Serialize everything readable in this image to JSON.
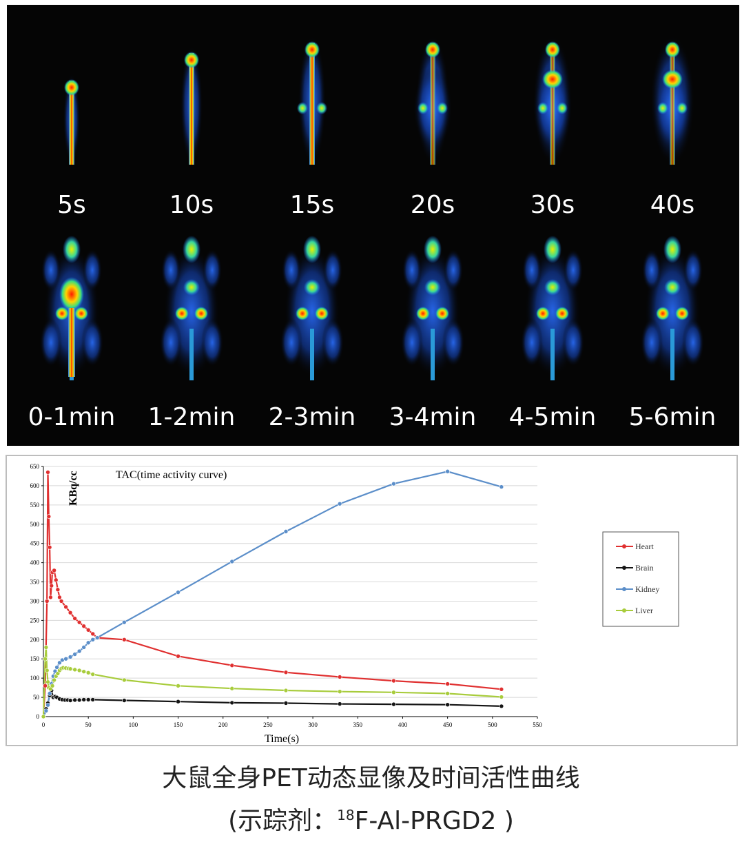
{
  "pet": {
    "row1_labels": [
      "5s",
      "10s",
      "15s",
      "20s",
      "30s",
      "40s"
    ],
    "row2_labels": [
      "0-1min",
      "1-2min",
      "2-3min",
      "3-4min",
      "4-5min",
      "5-6min"
    ],
    "colors": {
      "background": "#050505",
      "label": "#ffffff"
    }
  },
  "chart_data": {
    "type": "line",
    "title": "TAC(time activity curve)",
    "xlabel": "Time(s)",
    "ylabel": "KBq/cc",
    "xlim": [
      0,
      550
    ],
    "ylim": [
      0,
      650
    ],
    "xticks": [
      0,
      50,
      100,
      150,
      200,
      250,
      300,
      350,
      400,
      450,
      500,
      550
    ],
    "yticks": [
      0,
      50,
      100,
      150,
      200,
      250,
      300,
      350,
      400,
      450,
      500,
      550,
      600,
      650
    ],
    "legend_position": "right",
    "series": [
      {
        "name": "Heart",
        "color": "#e03030",
        "x": [
          0,
          2,
          4,
          5,
          6,
          7,
          8,
          9,
          10,
          12,
          14,
          16,
          18,
          20,
          25,
          30,
          35,
          40,
          45,
          50,
          55,
          60,
          90,
          150,
          210,
          270,
          330,
          390,
          450,
          510
        ],
        "y": [
          0,
          80,
          300,
          635,
          520,
          440,
          310,
          340,
          375,
          380,
          355,
          330,
          310,
          300,
          285,
          270,
          255,
          245,
          235,
          225,
          215,
          205,
          200,
          157,
          133,
          115,
          103,
          93,
          85,
          71
        ]
      },
      {
        "name": "Brain",
        "color": "#151515",
        "x": [
          0,
          3,
          5,
          7,
          9,
          11,
          13,
          15,
          18,
          21,
          24,
          27,
          30,
          35,
          40,
          45,
          50,
          55,
          90,
          150,
          210,
          270,
          330,
          390,
          450,
          510
        ],
        "y": [
          0,
          20,
          35,
          55,
          68,
          50,
          52,
          50,
          46,
          44,
          43,
          43,
          42,
          43,
          43,
          44,
          44,
          44,
          42,
          39,
          36,
          35,
          33,
          32,
          31,
          27
        ]
      },
      {
        "name": "Kidney",
        "color": "#5b8ec9",
        "x": [
          0,
          3,
          5,
          7,
          9,
          11,
          13,
          15,
          18,
          21,
          25,
          30,
          35,
          40,
          45,
          50,
          55,
          60,
          90,
          150,
          210,
          270,
          330,
          390,
          450,
          510
        ],
        "y": [
          0,
          15,
          30,
          60,
          85,
          105,
          118,
          128,
          140,
          147,
          150,
          155,
          162,
          170,
          180,
          192,
          200,
          205,
          245,
          323,
          403,
          481,
          553,
          605,
          637,
          597
        ]
      },
      {
        "name": "Liver",
        "color": "#a8cc3c",
        "x": [
          0,
          2,
          3,
          4,
          5,
          6,
          8,
          10,
          12,
          14,
          16,
          18,
          20,
          22,
          25,
          28,
          30,
          35,
          40,
          45,
          50,
          55,
          90,
          150,
          210,
          270,
          330,
          390,
          450,
          510
        ],
        "y": [
          0,
          150,
          180,
          120,
          90,
          75,
          72,
          80,
          95,
          105,
          112,
          120,
          125,
          127,
          126,
          125,
          124,
          122,
          120,
          117,
          114,
          110,
          95,
          80,
          73,
          68,
          65,
          63,
          60,
          51
        ]
      }
    ]
  },
  "caption": {
    "line1": "大鼠全身PET动态显像及时间活性曲线",
    "line2_prefix": "(示踪剂：",
    "line2_sup": "18",
    "line2_suffix": "F-Al-PRGD2 )"
  }
}
